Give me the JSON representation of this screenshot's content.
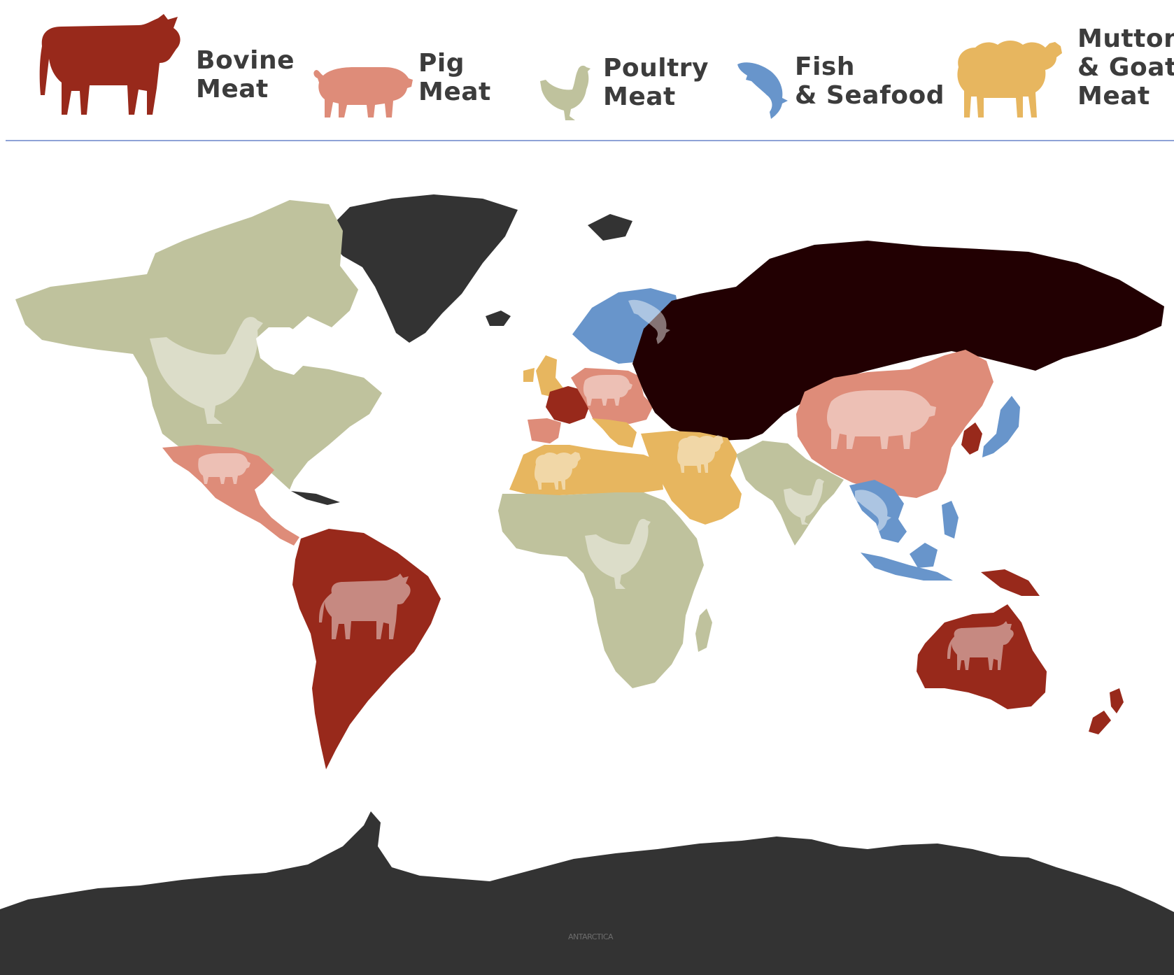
{
  "legend": {
    "items": [
      {
        "id": "bovine",
        "label": "Bovine\nMeat",
        "color": "#98291b",
        "icon": "cow-icon"
      },
      {
        "id": "pig",
        "label": "Pig\nMeat",
        "color": "#de8c79",
        "icon": "pig-icon"
      },
      {
        "id": "poultry",
        "label": "Poultry\nMeat",
        "color": "#bfc29d",
        "icon": "chicken-icon"
      },
      {
        "id": "fish",
        "label": "Fish\n& Seafood",
        "color": "#6895cb",
        "icon": "fish-icon"
      },
      {
        "id": "mutton",
        "label": "Mutton\n& Goat\nMeat",
        "color": "#e7b65f",
        "icon": "sheep-icon"
      }
    ]
  },
  "map": {
    "watermark": "ANTARCTICA",
    "colors": {
      "no_data": "#333333",
      "russia": "#220002",
      "ocean": "#ffffff"
    },
    "regions": [
      {
        "name": "North America",
        "category": "poultry"
      },
      {
        "name": "Mexico & Central America",
        "category": "pig"
      },
      {
        "name": "South America",
        "category": "bovine"
      },
      {
        "name": "Greenland",
        "category": "none"
      },
      {
        "name": "Scandinavia",
        "category": "fish"
      },
      {
        "name": "United Kingdom",
        "category": "mutton"
      },
      {
        "name": "France",
        "category": "bovine"
      },
      {
        "name": "Central Europe",
        "category": "pig"
      },
      {
        "name": "Iberia",
        "category": "pig"
      },
      {
        "name": "Italy & Balkans",
        "category": "mutton"
      },
      {
        "name": "Russia",
        "category": "none"
      },
      {
        "name": "North Africa",
        "category": "mutton"
      },
      {
        "name": "Middle East",
        "category": "mutton"
      },
      {
        "name": "Sub-Saharan Africa",
        "category": "poultry"
      },
      {
        "name": "Madagascar",
        "category": "poultry"
      },
      {
        "name": "South Asia",
        "category": "poultry"
      },
      {
        "name": "China",
        "category": "pig"
      },
      {
        "name": "Korea",
        "category": "bovine"
      },
      {
        "name": "Japan",
        "category": "fish"
      },
      {
        "name": "Southeast Asia",
        "category": "fish"
      },
      {
        "name": "Papua New Guinea",
        "category": "bovine"
      },
      {
        "name": "Australia",
        "category": "bovine"
      },
      {
        "name": "New Zealand",
        "category": "bovine"
      },
      {
        "name": "Antarctica",
        "category": "none"
      }
    ]
  }
}
